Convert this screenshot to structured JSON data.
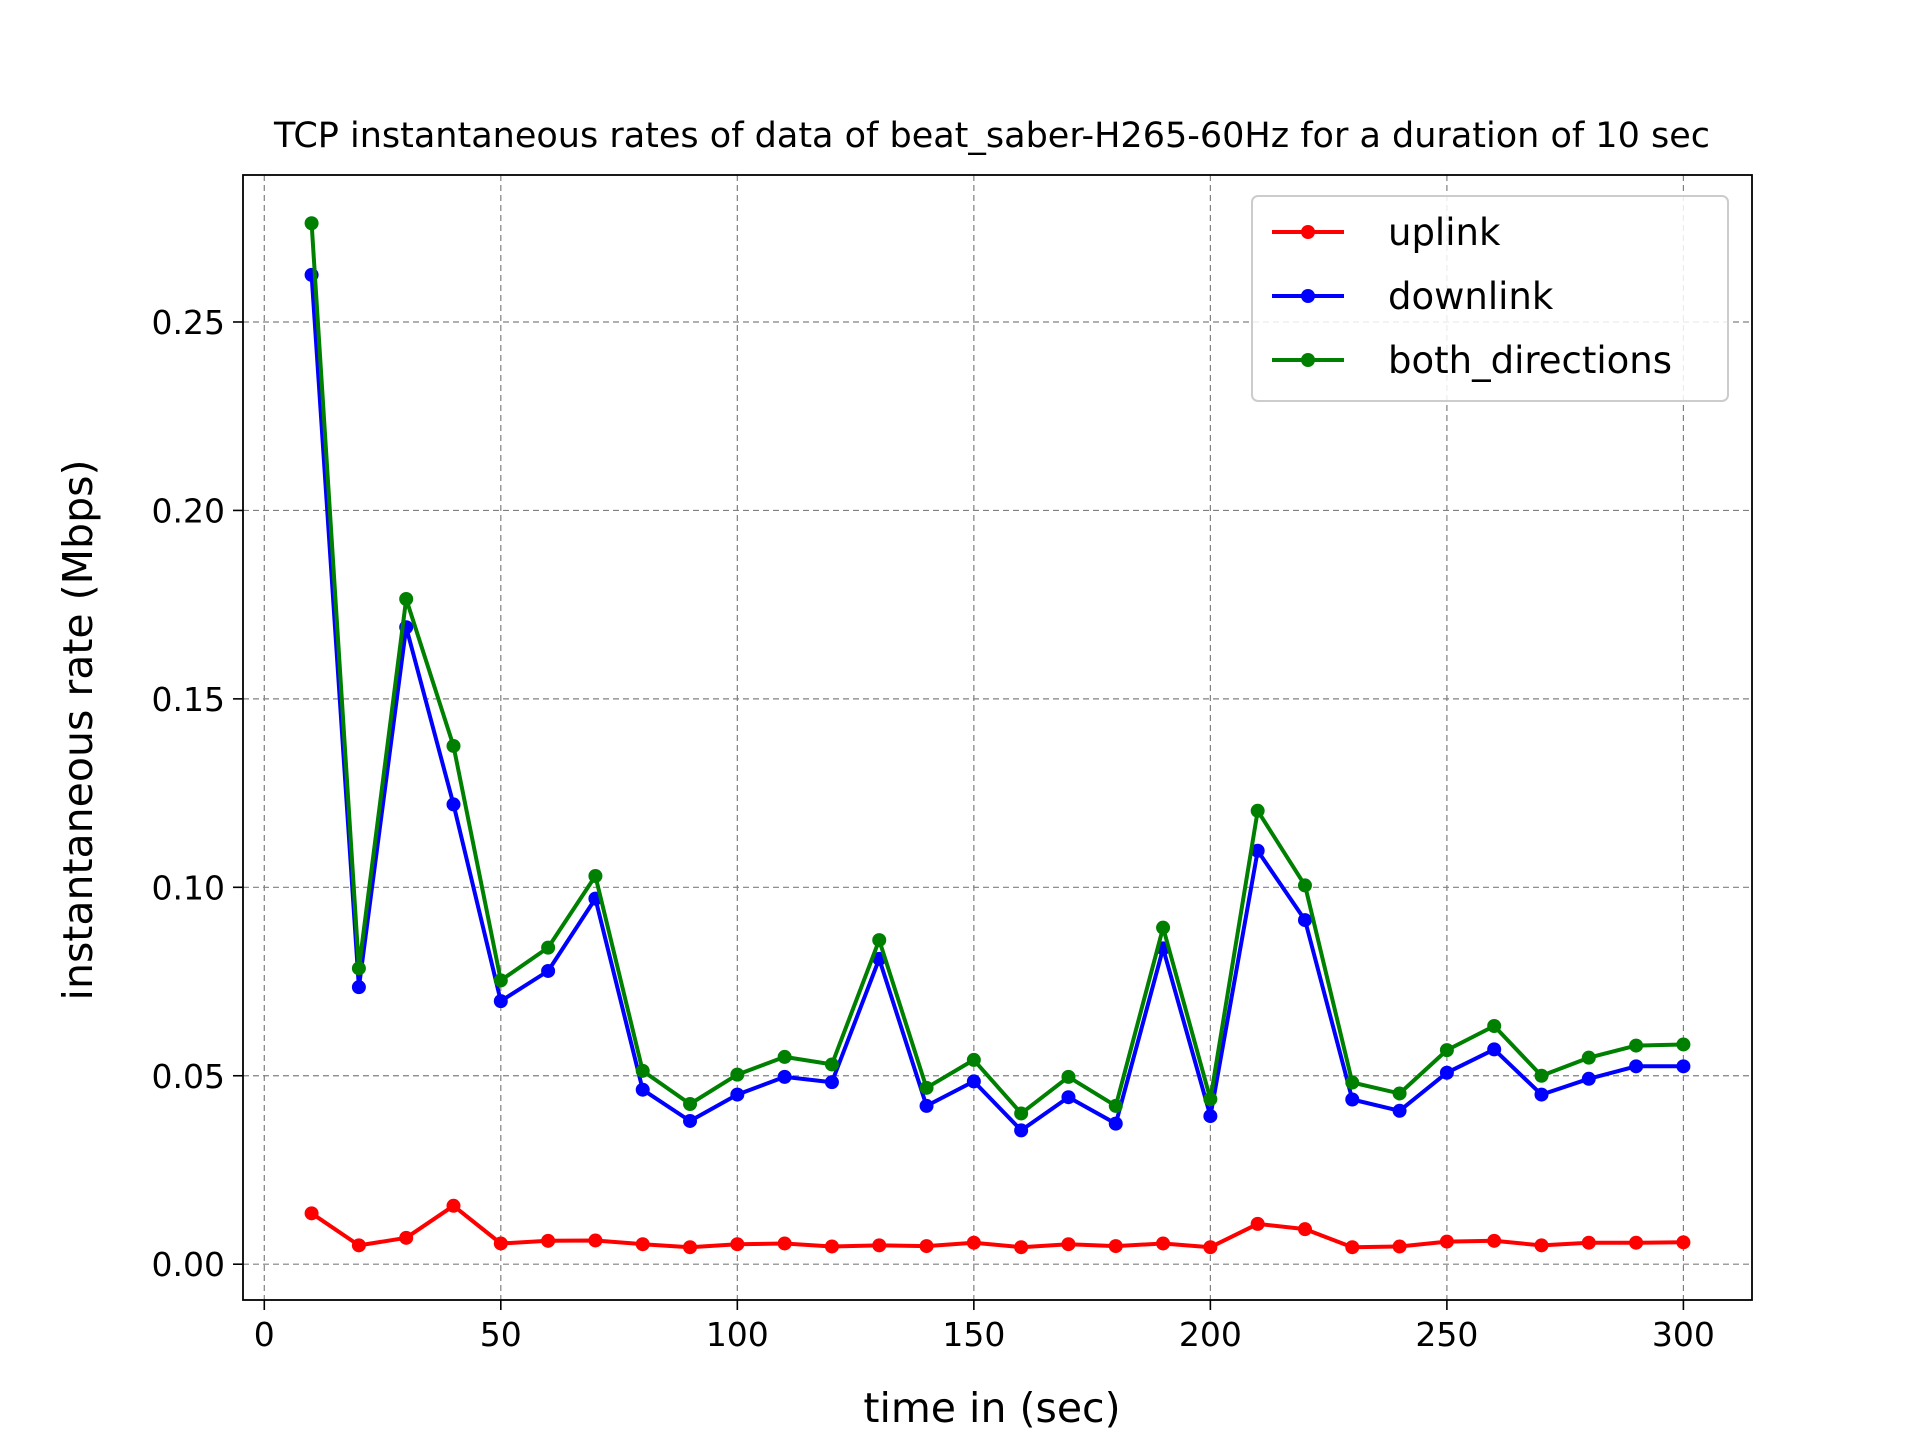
{
  "chart_data": {
    "type": "line",
    "title": "TCP instantaneous rates of data of beat_saber-H265-60Hz for a duration of 10 sec",
    "xlabel": "time in (sec)",
    "ylabel": "instantaneous rate (Mbps)",
    "xlim": [
      -4.5,
      314.5
    ],
    "ylim": [
      -0.0095,
      0.289
    ],
    "xticks": [
      0,
      50,
      100,
      150,
      200,
      250,
      300
    ],
    "xtick_labels": [
      "0",
      "50",
      "100",
      "150",
      "200",
      "250",
      "300"
    ],
    "yticks": [
      0.0,
      0.05,
      0.1,
      0.15,
      0.2,
      0.25
    ],
    "ytick_labels": [
      "0.00",
      "0.05",
      "0.10",
      "0.15",
      "0.20",
      "0.25"
    ],
    "grid": true,
    "legend_position": "top-right",
    "x": [
      10,
      20,
      30,
      40,
      50,
      60,
      70,
      80,
      90,
      100,
      110,
      120,
      130,
      140,
      150,
      160,
      170,
      180,
      190,
      200,
      210,
      220,
      230,
      240,
      250,
      260,
      270,
      280,
      290,
      300
    ],
    "series": [
      {
        "name": "uplink",
        "color": "#ff0000",
        "values": [
          0.0135,
          0.005,
          0.007,
          0.0155,
          0.0055,
          0.0062,
          0.0063,
          0.0053,
          0.0045,
          0.0053,
          0.0055,
          0.0047,
          0.005,
          0.0048,
          0.0057,
          0.0045,
          0.0053,
          0.0048,
          0.0055,
          0.0045,
          0.0107,
          0.0093,
          0.0045,
          0.0047,
          0.006,
          0.0062,
          0.005,
          0.0057,
          0.0057,
          0.0058
        ]
      },
      {
        "name": "downlink",
        "color": "#0000ff",
        "values": [
          0.2625,
          0.0735,
          0.169,
          0.122,
          0.0698,
          0.0778,
          0.097,
          0.0463,
          0.038,
          0.045,
          0.0497,
          0.0483,
          0.081,
          0.042,
          0.0485,
          0.0355,
          0.0443,
          0.0373,
          0.0838,
          0.0393,
          0.1097,
          0.0913,
          0.0437,
          0.0407,
          0.0508,
          0.057,
          0.045,
          0.0492,
          0.0525,
          0.0525
        ]
      },
      {
        "name": "both_directions",
        "color": "#008000",
        "values": [
          0.2762,
          0.0785,
          0.1765,
          0.1375,
          0.0753,
          0.084,
          0.103,
          0.0513,
          0.0425,
          0.0503,
          0.055,
          0.053,
          0.086,
          0.0468,
          0.0542,
          0.04,
          0.0497,
          0.042,
          0.0893,
          0.0438,
          0.1203,
          0.1005,
          0.0482,
          0.0453,
          0.0568,
          0.0632,
          0.05,
          0.0548,
          0.058,
          0.0583
        ]
      }
    ]
  }
}
